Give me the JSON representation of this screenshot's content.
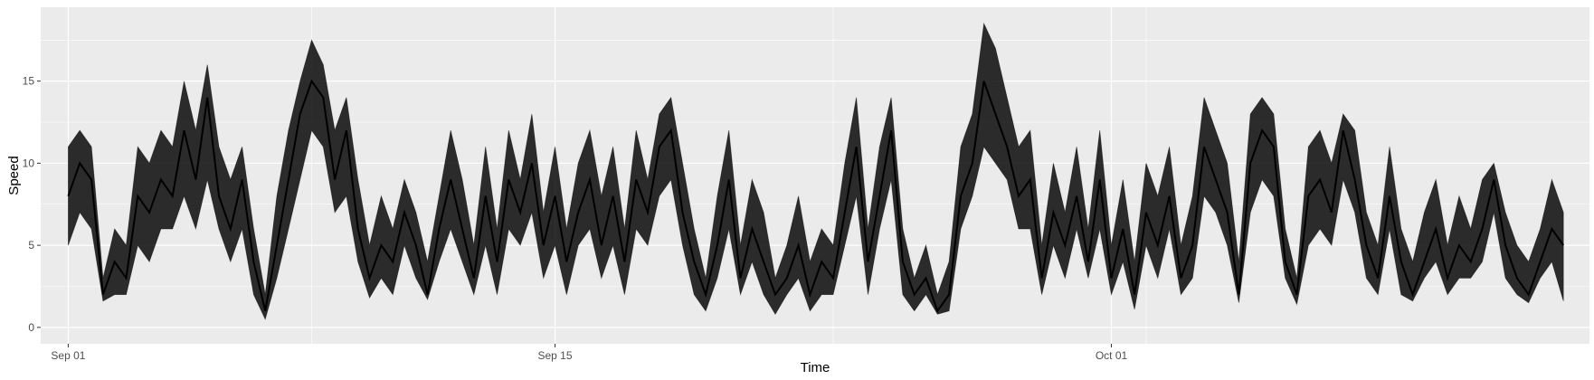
{
  "chart_data": {
    "type": "line",
    "title": "",
    "xlabel": "Time",
    "ylabel": "Speed",
    "xlim": [
      "2024-08-31T05:00",
      "2024-10-14T18:00"
    ],
    "ylim": [
      -1,
      19.5
    ],
    "x_ticks": [
      {
        "value": "2024-09-01",
        "label": "Sep 01"
      },
      {
        "value": "2024-09-15",
        "label": "Sep 15"
      },
      {
        "value": "2024-10-01",
        "label": "Oct 01"
      }
    ],
    "y_ticks": [
      {
        "value": 0,
        "label": "0"
      },
      {
        "value": 5,
        "label": "5"
      },
      {
        "value": 10,
        "label": "10"
      },
      {
        "value": 15,
        "label": "15"
      }
    ],
    "grid": true,
    "colors": {
      "panel": "#ebebeb",
      "grid": "#ffffff",
      "line": "#000000"
    },
    "series": [
      {
        "x": [
          "2024-09-01T00:00",
          "2024-09-01T08:00",
          "2024-09-01T16:00",
          "2024-09-02T00:00",
          "2024-09-02T08:00",
          "2024-09-02T16:00",
          "2024-09-03T00:00",
          "2024-09-03T08:00",
          "2024-09-03T16:00",
          "2024-09-04T00:00",
          "2024-09-04T08:00",
          "2024-09-04T16:00",
          "2024-09-05T00:00",
          "2024-09-05T08:00",
          "2024-09-05T16:00",
          "2024-09-06T00:00",
          "2024-09-06T08:00",
          "2024-09-06T16:00",
          "2024-09-07T00:00",
          "2024-09-07T08:00",
          "2024-09-07T16:00",
          "2024-09-08T00:00",
          "2024-09-08T08:00",
          "2024-09-08T16:00",
          "2024-09-09T00:00",
          "2024-09-09T08:00",
          "2024-09-09T16:00",
          "2024-09-10T00:00",
          "2024-09-10T08:00",
          "2024-09-10T16:00",
          "2024-09-11T00:00",
          "2024-09-11T08:00",
          "2024-09-11T16:00",
          "2024-09-12T00:00",
          "2024-09-12T08:00",
          "2024-09-12T16:00",
          "2024-09-13T00:00",
          "2024-09-13T08:00",
          "2024-09-13T16:00",
          "2024-09-14T00:00",
          "2024-09-14T08:00",
          "2024-09-14T16:00",
          "2024-09-15T00:00",
          "2024-09-15T08:00",
          "2024-09-15T16:00",
          "2024-09-16T00:00",
          "2024-09-16T08:00",
          "2024-09-16T16:00",
          "2024-09-17T00:00",
          "2024-09-17T08:00",
          "2024-09-17T16:00",
          "2024-09-18T00:00",
          "2024-09-18T08:00",
          "2024-09-18T16:00",
          "2024-09-19T00:00",
          "2024-09-19T08:00",
          "2024-09-19T16:00",
          "2024-09-20T00:00",
          "2024-09-20T08:00",
          "2024-09-20T16:00",
          "2024-09-21T00:00",
          "2024-09-21T08:00",
          "2024-09-21T16:00",
          "2024-09-22T00:00",
          "2024-09-22T08:00",
          "2024-09-22T16:00",
          "2024-09-23T00:00",
          "2024-09-23T08:00",
          "2024-09-23T16:00",
          "2024-09-24T00:00",
          "2024-09-24T08:00",
          "2024-09-24T16:00",
          "2024-09-25T00:00",
          "2024-09-25T08:00",
          "2024-09-25T16:00",
          "2024-09-26T00:00",
          "2024-09-26T08:00",
          "2024-09-26T16:00",
          "2024-09-27T00:00",
          "2024-09-27T08:00",
          "2024-09-27T16:00",
          "2024-09-28T00:00",
          "2024-09-28T08:00",
          "2024-09-28T16:00",
          "2024-09-29T00:00",
          "2024-09-29T08:00",
          "2024-09-29T16:00",
          "2024-09-30T00:00",
          "2024-09-30T08:00",
          "2024-09-30T16:00",
          "2024-10-01T00:00",
          "2024-10-01T08:00",
          "2024-10-01T16:00",
          "2024-10-02T00:00",
          "2024-10-02T08:00",
          "2024-10-02T16:00",
          "2024-10-03T00:00",
          "2024-10-03T08:00",
          "2024-10-03T16:00",
          "2024-10-04T00:00",
          "2024-10-04T08:00",
          "2024-10-04T16:00",
          "2024-10-05T00:00",
          "2024-10-05T08:00",
          "2024-10-05T16:00",
          "2024-10-06T00:00",
          "2024-10-06T08:00",
          "2024-10-06T16:00",
          "2024-10-07T00:00",
          "2024-10-07T08:00",
          "2024-10-07T16:00",
          "2024-10-08T00:00",
          "2024-10-08T08:00",
          "2024-10-08T16:00",
          "2024-10-09T00:00",
          "2024-10-09T08:00",
          "2024-10-09T16:00",
          "2024-10-10T00:00",
          "2024-10-10T08:00",
          "2024-10-10T16:00",
          "2024-10-11T00:00",
          "2024-10-11T08:00",
          "2024-10-11T16:00",
          "2024-10-12T00:00",
          "2024-10-12T08:00",
          "2024-10-12T16:00",
          "2024-10-13T00:00",
          "2024-10-13T08:00",
          "2024-10-13T16:00",
          "2024-10-14T00:00"
        ],
        "y": [
          8,
          10,
          9,
          2,
          4,
          3,
          8,
          7,
          9,
          8,
          12,
          9,
          14,
          8,
          6,
          9,
          4,
          1,
          5,
          9,
          13,
          15,
          14,
          9,
          12,
          6,
          3,
          5,
          4,
          7,
          5,
          2,
          6,
          9,
          6,
          3,
          8,
          4,
          9,
          7,
          10,
          5,
          8,
          4,
          7,
          9,
          5,
          8,
          4,
          9,
          7,
          11,
          12,
          7,
          4,
          2,
          5,
          9,
          3,
          6,
          4,
          2,
          3,
          5,
          2,
          4,
          3,
          7,
          11,
          4,
          8,
          12,
          4,
          2,
          3,
          1,
          2,
          8,
          10,
          15,
          13,
          11,
          8,
          9,
          3,
          7,
          5,
          8,
          4,
          9,
          3,
          6,
          2,
          7,
          5,
          8,
          3,
          5,
          11,
          9,
          7,
          2,
          10,
          12,
          11,
          4,
          2,
          8,
          9,
          7,
          12,
          9,
          5,
          3,
          8,
          4,
          2,
          4,
          6,
          3,
          5,
          4,
          6,
          9,
          5,
          3,
          2,
          4,
          6,
          5
        ],
        "lower": [
          5,
          7,
          6,
          1.6,
          2,
          2,
          5,
          4,
          6,
          6,
          8,
          6,
          9,
          6,
          4,
          6,
          2,
          0.5,
          3,
          6,
          9,
          12,
          11,
          7,
          8,
          4,
          1.8,
          3,
          2,
          5,
          3,
          1.7,
          4,
          6,
          4,
          2,
          5,
          2,
          6,
          5,
          7,
          3,
          5,
          2,
          5,
          6,
          3,
          5,
          2,
          6,
          5,
          8,
          9,
          5,
          2,
          1,
          3,
          6,
          2,
          4,
          2,
          0.8,
          2,
          3,
          1,
          2,
          2,
          5,
          8,
          2,
          6,
          9,
          2,
          1,
          2,
          0.8,
          1,
          6,
          8,
          11,
          10,
          9,
          6,
          6,
          2,
          5,
          3,
          6,
          3,
          6,
          2,
          4,
          1.1,
          5,
          3,
          6,
          2,
          3,
          8,
          7,
          5,
          1.5,
          7,
          9,
          8,
          3,
          1.4,
          5,
          6,
          5,
          9,
          7,
          3,
          2,
          6,
          2,
          1.6,
          3,
          4,
          2,
          3,
          3,
          4,
          7,
          3,
          2,
          1.5,
          3,
          4,
          1.6
        ],
        "upper": [
          11,
          12,
          11,
          3,
          6,
          5,
          11,
          10,
          12,
          11,
          15,
          12,
          16,
          11,
          9,
          11,
          6,
          2,
          8,
          12,
          15,
          17.5,
          16,
          12,
          14,
          9,
          5,
          8,
          6,
          9,
          7,
          4,
          8,
          12,
          9,
          5,
          11,
          6,
          12,
          9,
          13,
          7,
          11,
          6,
          10,
          12,
          8,
          11,
          6,
          12,
          9,
          13,
          14,
          10,
          6,
          3,
          8,
          12,
          5,
          9,
          7,
          3,
          5,
          8,
          4,
          6,
          5,
          10,
          14,
          6,
          11,
          14,
          6,
          3,
          5,
          2,
          4,
          11,
          13,
          18.5,
          17,
          14,
          11,
          12,
          5,
          10,
          7,
          11,
          6,
          12,
          5,
          9,
          4,
          10,
          8,
          11,
          5,
          8,
          14,
          12,
          10,
          4,
          13,
          14,
          13,
          6,
          3,
          11,
          12,
          10,
          13,
          12,
          7,
          5,
          11,
          6,
          4,
          7,
          9,
          5,
          8,
          6,
          9,
          10,
          7,
          5,
          4,
          6,
          9,
          7
        ]
      }
    ]
  }
}
